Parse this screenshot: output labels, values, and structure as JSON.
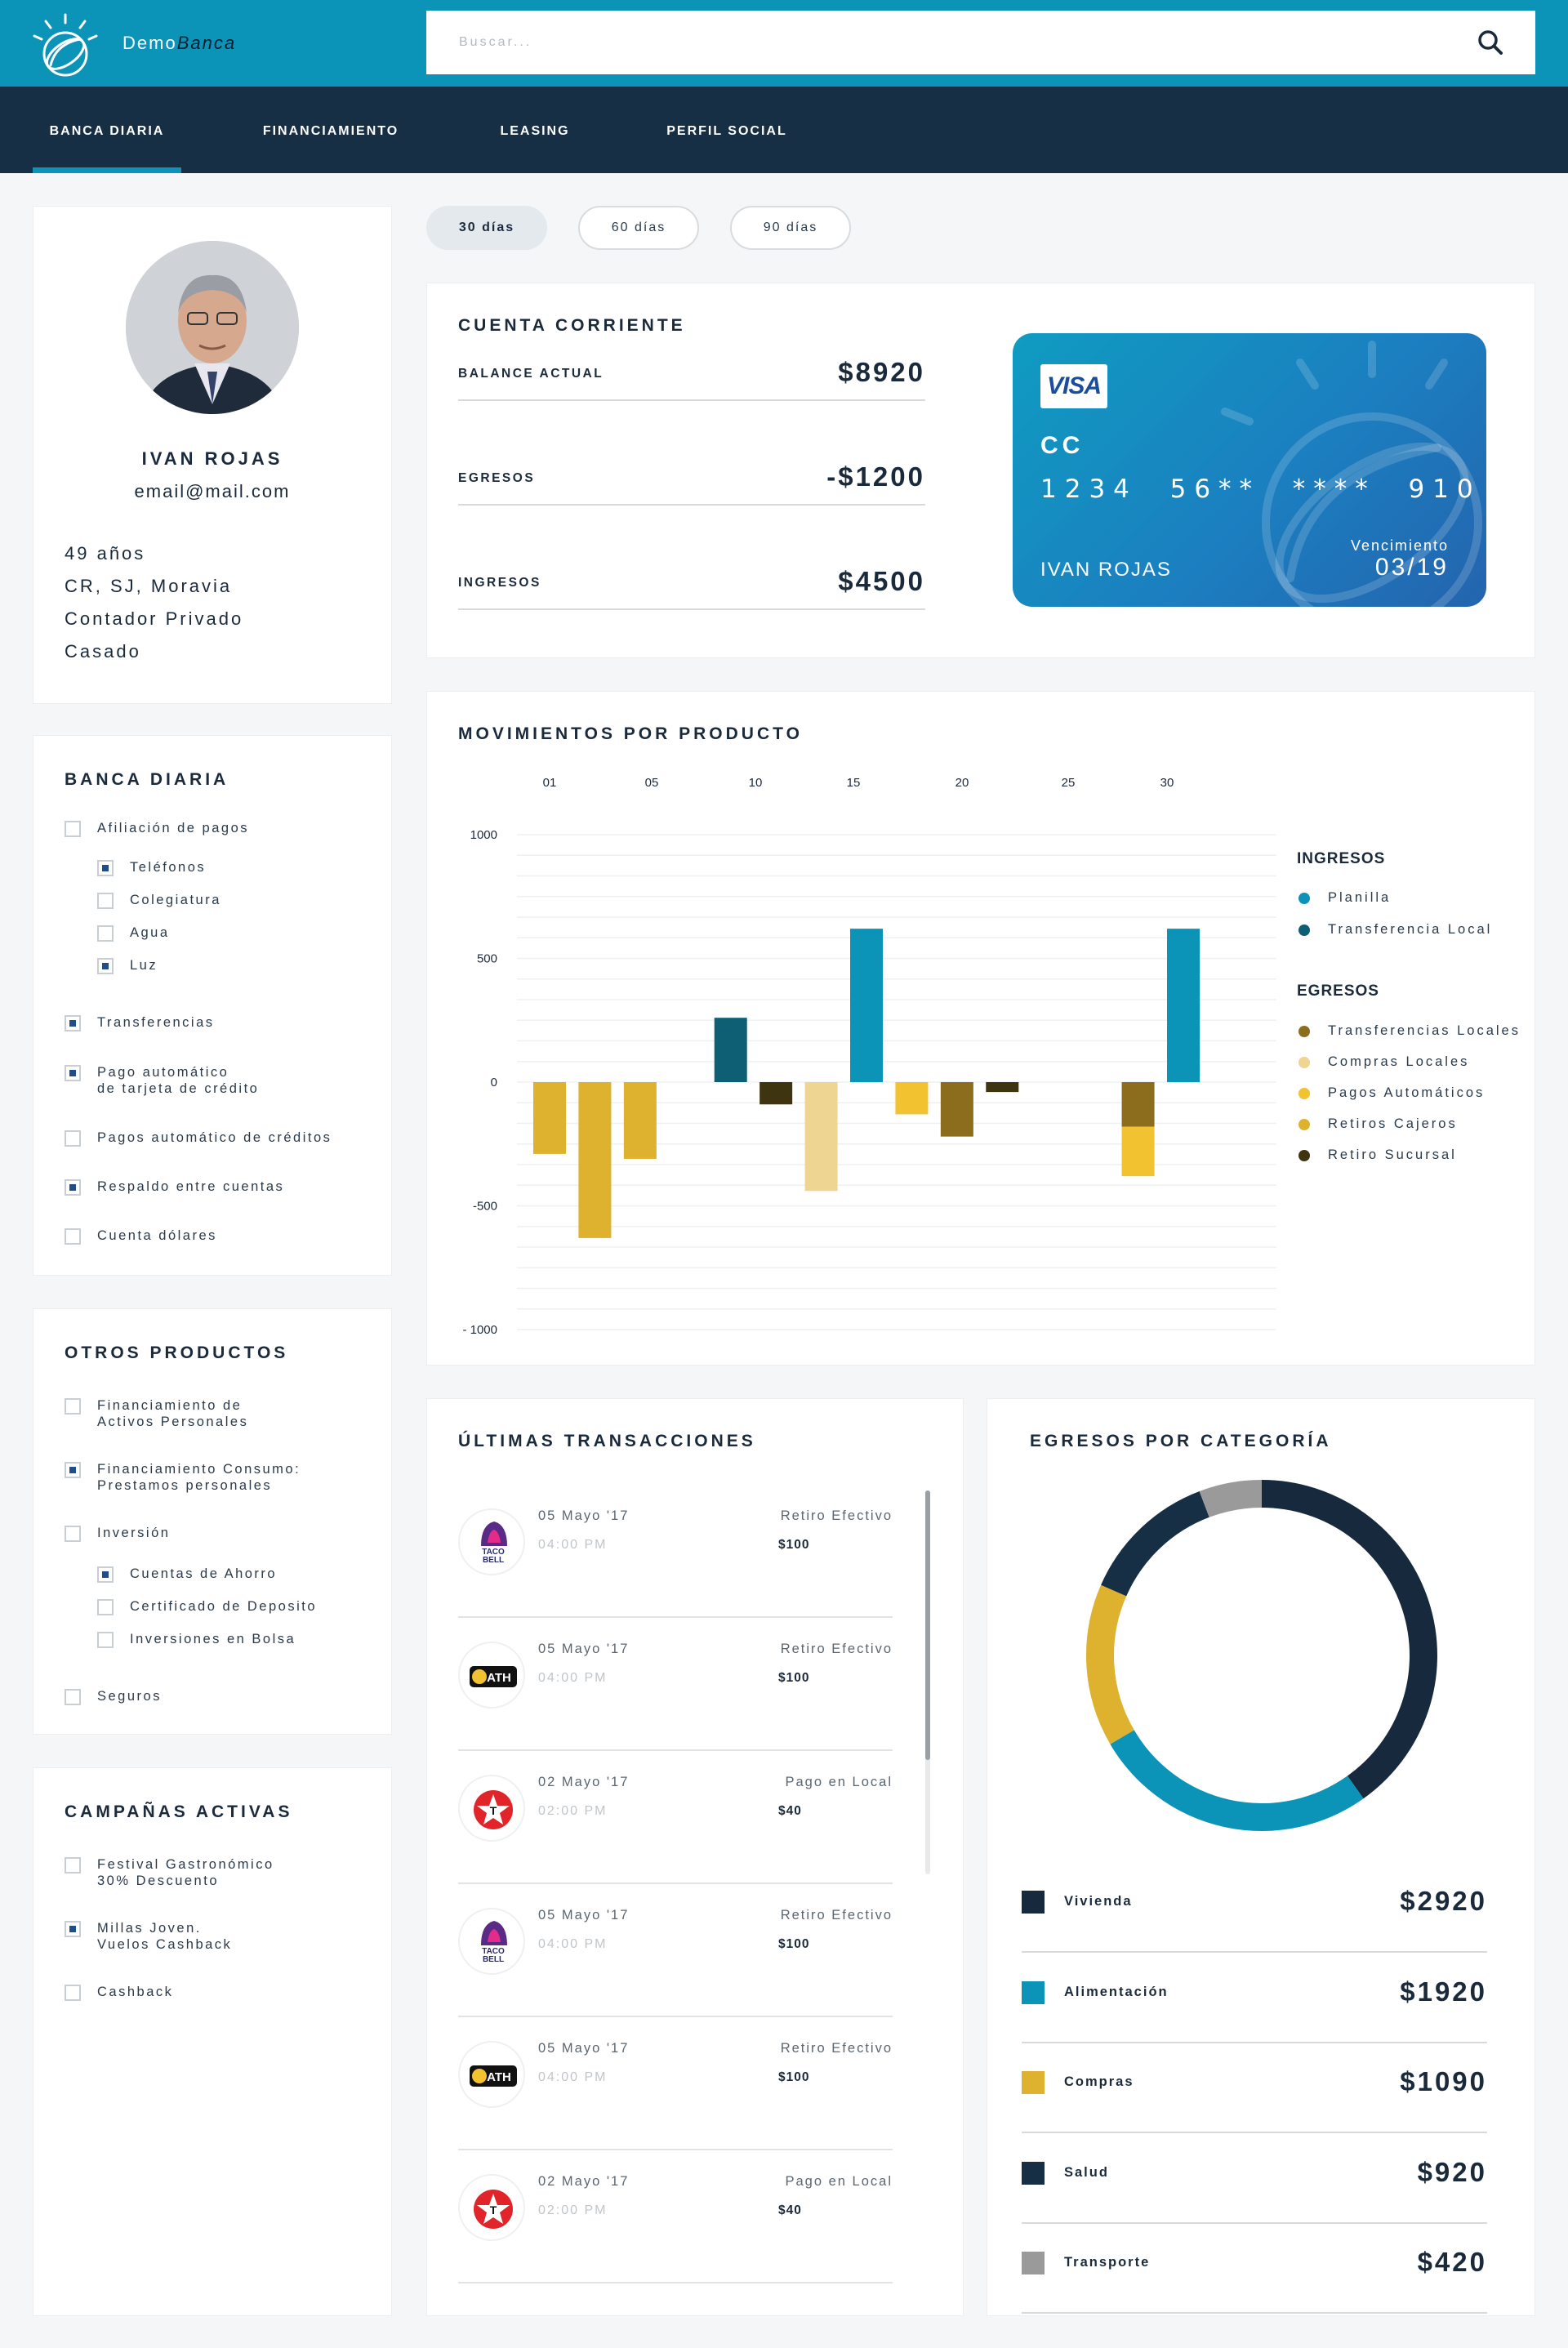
{
  "header": {
    "brand_prefix": "Demo",
    "brand_suffix": "Banca",
    "search_placeholder": "Buscar..."
  },
  "nav": {
    "tabs": [
      {
        "label": "BANCA DIARIA",
        "active": true
      },
      {
        "label": "FINANCIAMIENTO",
        "active": false
      },
      {
        "label": "LEASING",
        "active": false
      },
      {
        "label": "PERFIL SOCIAL",
        "active": false
      }
    ]
  },
  "profile": {
    "name": "IVAN ROJAS",
    "email": "email@mail.com",
    "age": "49 años",
    "location": "CR, SJ,  Moravia",
    "job": "Contador Privado",
    "status": "Casado"
  },
  "banca_diaria": {
    "title": "BANCA DIARIA",
    "items": [
      {
        "label": "Afiliación de pagos",
        "checked": false
      },
      {
        "label": "Teléfonos",
        "checked": true
      },
      {
        "label": "Colegiatura",
        "checked": false
      },
      {
        "label": "Agua",
        "checked": false
      },
      {
        "label": "Luz",
        "checked": true
      },
      {
        "label": "Transferencias",
        "checked": true
      },
      {
        "label": "Pago automático\nde tarjeta de crédito",
        "checked": true
      },
      {
        "label": "Pagos automático de créditos",
        "checked": false
      },
      {
        "label": "Respaldo entre cuentas",
        "checked": true
      },
      {
        "label": "Cuenta dólares",
        "checked": false
      }
    ]
  },
  "otros_productos": {
    "title": "OTROS PRODUCTOS",
    "items": [
      {
        "label": "Financiamiento de\nActivos Personales",
        "checked": false
      },
      {
        "label": "Financiamiento Consumo:\nPrestamos personales",
        "checked": true
      },
      {
        "label": "Inversión",
        "checked": false
      },
      {
        "label": "Cuentas de Ahorro",
        "checked": true
      },
      {
        "label": "Certificado de Deposito",
        "checked": false
      },
      {
        "label": "Inversiones en Bolsa",
        "checked": false
      },
      {
        "label": "Seguros",
        "checked": false
      }
    ]
  },
  "campanas": {
    "title": "CAMPAÑAS ACTIVAS",
    "items": [
      {
        "label": "Festival Gastronómico\n30% Descuento",
        "checked": false
      },
      {
        "label": "Millas Joven.\nVuelos Cashback",
        "checked": true
      },
      {
        "label": "Cashback",
        "checked": false
      }
    ]
  },
  "filters": [
    {
      "label": "30 días",
      "active": true
    },
    {
      "label": "60 días",
      "active": false
    },
    {
      "label": "90 días",
      "active": false
    }
  ],
  "cuenta": {
    "title": "CUENTA CORRIENTE",
    "rows": [
      {
        "label": "BALANCE ACTUAL",
        "value": "$8920"
      },
      {
        "label": "EGRESOS",
        "value": "-$1200"
      },
      {
        "label": "INGRESOS",
        "value": "$4500"
      }
    ],
    "card": {
      "brand": "VISA",
      "type": "CC",
      "number": "1234  56**  ****  910",
      "holder": "IVAN ROJAS",
      "exp_label": "Vencimiento",
      "exp_value": "03/19"
    }
  },
  "movimientos": {
    "title": "MOVIMIENTOS POR PRODUCTO",
    "legend_ingresos_title": "INGRESOS",
    "legend_egresos_title": "EGRESOS",
    "colors": {
      "planilla": "#0b93b8",
      "transferencia_local": "#0e5e74",
      "transferencias_locales": "#8c6d1e",
      "compras_locales": "#efd592",
      "pagos_automaticos": "#f2c230",
      "retiros_cajeros": "#deb12e",
      "retiro_sucursal": "#3f3410"
    }
  },
  "chart_data": {
    "type": "bar",
    "x_ticks": [
      "01",
      "05",
      "10",
      "15",
      "20",
      "25",
      "30"
    ],
    "y_ticks": [
      "1000",
      "500",
      "0",
      "-500",
      "- 1000"
    ],
    "ylim": [
      -1000,
      1000
    ],
    "series": [
      {
        "name": "Planilla",
        "key": "planilla",
        "group": "ingresos"
      },
      {
        "name": "Transferencia Local",
        "key": "transferencia_local",
        "group": "ingresos"
      },
      {
        "name": "Transferencias Locales",
        "key": "transferencias_locales",
        "group": "egresos"
      },
      {
        "name": "Compras Locales",
        "key": "compras_locales",
        "group": "egresos"
      },
      {
        "name": "Pagos Automáticos",
        "key": "pagos_automaticos",
        "group": "egresos"
      },
      {
        "name": "Retiros Cajeros",
        "key": "retiros_cajeros",
        "group": "egresos"
      },
      {
        "name": "Retiro Sucursal",
        "key": "retiro_sucursal",
        "group": "egresos"
      }
    ],
    "bars": [
      {
        "day": 1,
        "series": "retiros_cajeros",
        "value": -290
      },
      {
        "day": 3,
        "series": "retiros_cajeros",
        "value": -630
      },
      {
        "day": 5,
        "series": "retiros_cajeros",
        "value": -310
      },
      {
        "day": 9,
        "series": "transferencia_local",
        "value": 260
      },
      {
        "day": 11,
        "series": "retiro_sucursal",
        "value": -90
      },
      {
        "day": 13,
        "series": "compras_locales",
        "value": -440
      },
      {
        "day": 15,
        "series": "planilla",
        "value": 620
      },
      {
        "day": 17,
        "series": "pagos_automaticos",
        "value": -130
      },
      {
        "day": 19,
        "series": "transferencias_locales",
        "value": -220
      },
      {
        "day": 21,
        "series": "retiro_sucursal",
        "value": -40
      },
      {
        "day": 27,
        "series": "transferencias_locales",
        "value": -180,
        "base": 0
      },
      {
        "day": 27,
        "series": "pagos_automaticos",
        "value": -200,
        "base": -180
      },
      {
        "day": 29,
        "series": "planilla",
        "value": 620
      }
    ]
  },
  "transacciones": {
    "title": "ÚLTIMAS TRANSACCIONES",
    "items": [
      {
        "logo": "taco-bell",
        "date": "05 Mayo '17",
        "time": "04:00 PM",
        "type": "Retiro Efectivo",
        "amount": "$100"
      },
      {
        "logo": "ath",
        "date": "05 Mayo '17",
        "time": "04:00 PM",
        "type": "Retiro Efectivo",
        "amount": "$100"
      },
      {
        "logo": "texaco",
        "date": "02 Mayo '17",
        "time": "02:00 PM",
        "type": "Pago en Local",
        "amount": "$40"
      },
      {
        "logo": "taco-bell",
        "date": "05 Mayo '17",
        "time": "04:00 PM",
        "type": "Retiro Efectivo",
        "amount": "$100"
      },
      {
        "logo": "ath",
        "date": "05 Mayo '17",
        "time": "04:00 PM",
        "type": "Retiro Efectivo",
        "amount": "$100"
      },
      {
        "logo": "texaco",
        "date": "02 Mayo '17",
        "time": "02:00 PM",
        "type": "Pago en Local",
        "amount": "$40"
      }
    ],
    "logo_text": {
      "taco": "TACO",
      "bell": "BELL",
      "ath": "ATH"
    }
  },
  "egresos_categoria": {
    "title": "EGRESOS POR CATEGORÍA",
    "items": [
      {
        "name": "Vivienda",
        "value": "$2920",
        "amount": 2920,
        "color": "#172a3d"
      },
      {
        "name": "Alimentación",
        "value": "$1920",
        "amount": 1920,
        "color": "#0b93b8"
      },
      {
        "name": "Compras",
        "value": "$1090",
        "amount": 1090,
        "color": "#deb12e"
      },
      {
        "name": "Salud",
        "value": "$920",
        "amount": 920,
        "color": "#172f45"
      },
      {
        "name": "Transporte",
        "value": "$420",
        "amount": 420,
        "color": "#9a9a9a"
      }
    ]
  }
}
